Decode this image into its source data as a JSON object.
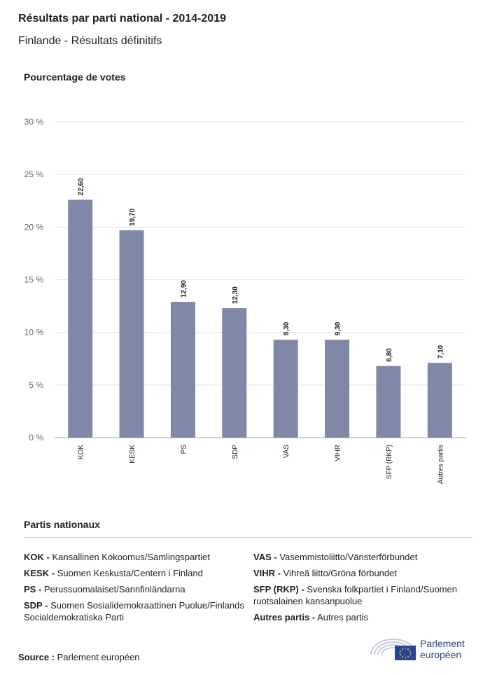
{
  "header": {
    "title": "Résultats par parti national - 2014-2019",
    "subtitle": "Finlande - Résultats définitifs"
  },
  "chart_data": {
    "type": "bar",
    "title": "Résultats par parti national - 2014-2019",
    "ylabel": "Pourcentage de votes",
    "xlabel": "",
    "ylim": [
      0,
      30
    ],
    "yticks": [
      "0 %",
      "5 %",
      "10 %",
      "15 %",
      "20 %",
      "25 %",
      "30 %"
    ],
    "categories": [
      "KOK",
      "KESK",
      "PS",
      "SDP",
      "VAS",
      "VIHR",
      "SFP (RKP)",
      "Autres partis"
    ],
    "values": [
      22.6,
      19.7,
      12.9,
      12.3,
      9.3,
      9.3,
      6.8,
      7.1
    ],
    "value_labels": [
      "22,60",
      "19,70",
      "12,90",
      "12,30",
      "9,30",
      "9,30",
      "6,80",
      "7,10"
    ],
    "bar_color": "#7f88a6",
    "grid": true,
    "legend": "none"
  },
  "legend": {
    "title": "Partis nationaux",
    "left": [
      {
        "code": "KOK -",
        "text": "Kansallinen Kokoomus/Samlingspartiet"
      },
      {
        "code": "KESK -",
        "text": "Suomen Keskusta/Centern i Finland"
      },
      {
        "code": "PS -",
        "text": "Perussuomalaiset/Sannfinländarna"
      },
      {
        "code": "SDP -",
        "text": "Suomen Sosialidemokraattinen Puolue/Finlands Socialdemokratiska Parti"
      }
    ],
    "right": [
      {
        "code": "VAS -",
        "text": "Vasemmistoliitto/Vänsterförbundet"
      },
      {
        "code": "VIHR -",
        "text": "Vihreä liitto/Gröna förbundet"
      },
      {
        "code": "SFP (RKP) -",
        "text": "Svenska folkpartiet i Finland/Suomen ruotsalainen kansanpuolue"
      },
      {
        "code": "Autres partis -",
        "text": "Autres partis"
      }
    ]
  },
  "footer": {
    "source_label": "Source :",
    "source_value": "Parlement européen",
    "logo_line1": "Parlement",
    "logo_line2": "européen",
    "logo_icon": "european-parliament-hemicycle-eu-flag-icon"
  }
}
